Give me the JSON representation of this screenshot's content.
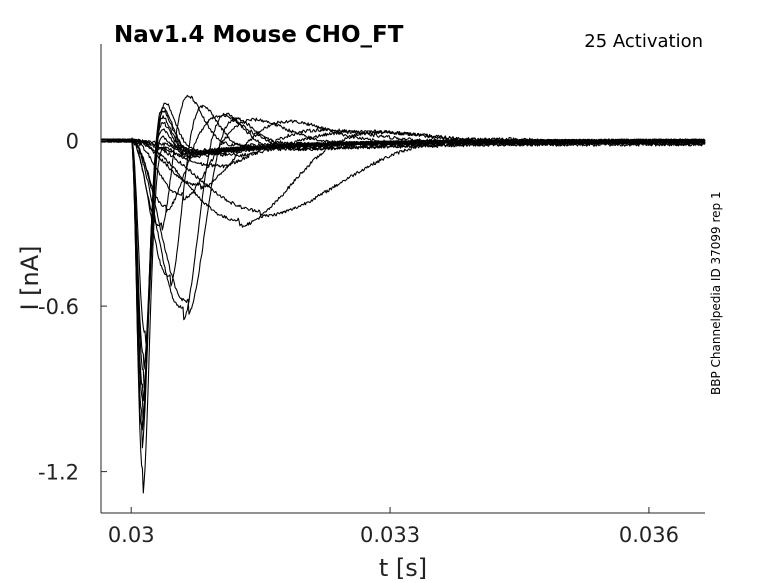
{
  "chart_data": {
    "type": "line",
    "title": "Nav1.4  Mouse  CHO_FT",
    "subtitle": "25  Activation",
    "side_label": "BBP Channelpedia ID 37099 rep 1",
    "xlabel": "t [s]",
    "ylabel": "I [nA]",
    "xlim": [
      0.02965,
      0.03665
    ],
    "ylim": [
      -1.35,
      0.35
    ],
    "xticks": [
      0.03,
      0.033,
      0.036
    ],
    "xtick_labels": [
      "0.03",
      "0.033",
      "0.036"
    ],
    "yticks": [
      0,
      -0.6,
      -1.2
    ],
    "ytick_labels": [
      "0",
      "-0.6",
      "-1.2"
    ],
    "grid": false,
    "legend": "none",
    "onset": 0.03,
    "series": [
      {
        "peak_t": 0.03013,
        "peak": -1.22,
        "pos": 0.07,
        "decay": 0.0002
      },
      {
        "peak_t": 0.03012,
        "peak": -1.08,
        "pos": 0.1,
        "decay": 0.0002
      },
      {
        "peak_t": 0.03012,
        "peak": -1.04,
        "pos": 0.13,
        "decay": 0.0002
      },
      {
        "peak_t": 0.03013,
        "peak": -1.0,
        "pos": 0.15,
        "decay": 0.0002
      },
      {
        "peak_t": 0.03013,
        "peak": -0.96,
        "pos": 0.17,
        "decay": 0.0002
      },
      {
        "peak_t": 0.03014,
        "peak": -0.92,
        "pos": 0.19,
        "decay": 0.0002
      },
      {
        "peak_t": 0.03014,
        "peak": -0.86,
        "pos": 0.2,
        "decay": 0.0002
      },
      {
        "peak_t": 0.03016,
        "peak": -0.78,
        "pos": 0.21,
        "decay": 0.00021
      },
      {
        "peak_t": 0.03035,
        "peak": -0.37,
        "pos": 0.2,
        "decay": 0.0003
      },
      {
        "peak_t": 0.03045,
        "peak": -0.55,
        "pos": 0.18,
        "decay": 0.00035
      },
      {
        "peak_t": 0.0306,
        "peak": -0.65,
        "pos": 0.16,
        "decay": 0.00045
      },
      {
        "peak_t": 0.03066,
        "peak": -0.62,
        "pos": 0.14,
        "decay": 0.0005
      },
      {
        "peak_t": 0.0304,
        "peak": -0.27,
        "pos": 0.12,
        "decay": 0.0006
      },
      {
        "peak_t": 0.0306,
        "peak": -0.22,
        "pos": 0.1,
        "decay": 0.0008
      },
      {
        "peak_t": 0.0308,
        "peak": -0.18,
        "pos": 0.09,
        "decay": 0.001
      },
      {
        "peak_t": 0.03125,
        "peak": -0.3,
        "pos": 0.06,
        "decay": 0.0015
      },
      {
        "peak_t": 0.0315,
        "peak": -0.26,
        "pos": 0.03,
        "decay": 0.0023
      },
      {
        "peak_t": 0.031,
        "peak": -0.1,
        "pos": 0.05,
        "decay": 0.0012
      },
      {
        "peak_t": 0.0312,
        "peak": -0.06,
        "pos": 0.04,
        "decay": 0.0015
      }
    ]
  }
}
